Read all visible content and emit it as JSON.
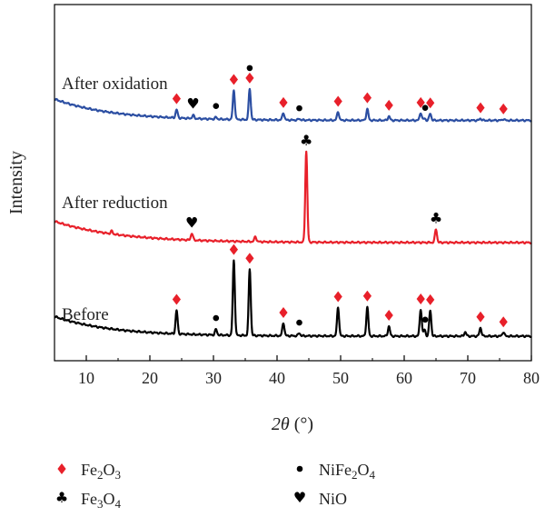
{
  "chart_data": {
    "type": "line",
    "xlabel_var": "2θ",
    "xlabel_unit": "(°)",
    "ylabel": "Intensity",
    "xlim": [
      5,
      80
    ],
    "xticks": [
      10,
      20,
      30,
      40,
      50,
      60,
      70,
      80
    ],
    "y_ticks_shown": false,
    "grid": false,
    "legend_position": "bottom",
    "legend": [
      {
        "symbol": "diamond",
        "color": "#e8202a",
        "parts": [
          [
            "Fe",
            ""
          ],
          [
            "2",
            "sub"
          ],
          [
            "O",
            ""
          ],
          [
            "3",
            "sub"
          ]
        ]
      },
      {
        "symbol": "dot",
        "color": "#000000",
        "parts": [
          [
            "NiFe",
            ""
          ],
          [
            "2",
            "sub"
          ],
          [
            "O",
            ""
          ],
          [
            "4",
            "sub"
          ]
        ]
      },
      {
        "symbol": "club",
        "color": "#000000",
        "parts": [
          [
            "Fe",
            ""
          ],
          [
            "3",
            "sub"
          ],
          [
            "O",
            ""
          ],
          [
            "4",
            "sub"
          ]
        ]
      },
      {
        "symbol": "heart",
        "color": "#000000",
        "parts": [
          [
            "NiO",
            ""
          ]
        ]
      }
    ],
    "series": [
      {
        "name": "After oxidation",
        "color": "#2b4ea2",
        "baseline": {
          "start": 2.6,
          "end": 0.25,
          "decay": 9
        },
        "peaks": [
          [
            24.2,
            0.9
          ],
          [
            26.8,
            0.35
          ],
          [
            30.4,
            0.2
          ],
          [
            33.2,
            3.2
          ],
          [
            35.7,
            3.4
          ],
          [
            41.0,
            0.8
          ],
          [
            43.5,
            0.15
          ],
          [
            49.6,
            0.95
          ],
          [
            54.2,
            1.25
          ],
          [
            57.6,
            0.45
          ],
          [
            62.6,
            0.85
          ],
          [
            63.2,
            0.2
          ],
          [
            64.1,
            0.75
          ],
          [
            72.0,
            0.2
          ],
          [
            75.6,
            0.15
          ]
        ],
        "markers": [
          {
            "symbol": "diamond",
            "x": 24.2
          },
          {
            "symbol": "heart",
            "x": 26.8
          },
          {
            "symbol": "dot",
            "x": 30.4
          },
          {
            "symbol": "diamond",
            "x": 33.2
          },
          {
            "symbol": "diamond",
            "x": 35.7
          },
          {
            "symbol": "dot",
            "x": 35.7
          },
          {
            "symbol": "diamond",
            "x": 41.0
          },
          {
            "symbol": "dot",
            "x": 43.5
          },
          {
            "symbol": "diamond",
            "x": 49.6
          },
          {
            "symbol": "diamond",
            "x": 54.2
          },
          {
            "symbol": "diamond",
            "x": 57.6
          },
          {
            "symbol": "diamond",
            "x": 62.6
          },
          {
            "symbol": "dot",
            "x": 63.3
          },
          {
            "symbol": "diamond",
            "x": 64.1
          },
          {
            "symbol": "diamond",
            "x": 72.0
          },
          {
            "symbol": "diamond",
            "x": 75.6
          }
        ]
      },
      {
        "name": "After reduction",
        "color": "#e8202a",
        "baseline": {
          "start": 2.4,
          "end": 0.1,
          "decay": 10
        },
        "peaks": [
          [
            14.0,
            0.3
          ],
          [
            26.6,
            0.75
          ],
          [
            36.6,
            0.55
          ],
          [
            44.6,
            9.8
          ],
          [
            65.0,
            1.45
          ]
        ],
        "markers": [
          {
            "symbol": "heart",
            "x": 26.6
          },
          {
            "symbol": "club",
            "x": 44.6
          },
          {
            "symbol": "club",
            "x": 65.0
          }
        ]
      },
      {
        "name": "Before",
        "color": "#000000",
        "baseline": {
          "start": 2.2,
          "end": 0.1,
          "decay": 9
        },
        "peaks": [
          [
            24.2,
            2.5
          ],
          [
            30.4,
            0.6
          ],
          [
            33.2,
            8.0
          ],
          [
            35.7,
            7.1
          ],
          [
            41.0,
            1.4
          ],
          [
            43.5,
            0.3
          ],
          [
            49.6,
            3.1
          ],
          [
            54.2,
            3.1
          ],
          [
            57.6,
            1.05
          ],
          [
            62.6,
            2.9
          ],
          [
            63.2,
            0.7
          ],
          [
            64.1,
            2.75
          ],
          [
            69.6,
            0.45
          ],
          [
            72.0,
            0.9
          ],
          [
            75.6,
            0.45
          ]
        ],
        "markers": [
          {
            "symbol": "diamond",
            "x": 24.2
          },
          {
            "symbol": "dot",
            "x": 30.4
          },
          {
            "symbol": "diamond",
            "x": 33.2
          },
          {
            "symbol": "diamond",
            "x": 35.7
          },
          {
            "symbol": "diamond",
            "x": 41.0
          },
          {
            "symbol": "dot",
            "x": 43.5
          },
          {
            "symbol": "diamond",
            "x": 49.6
          },
          {
            "symbol": "diamond",
            "x": 54.2
          },
          {
            "symbol": "diamond",
            "x": 57.6
          },
          {
            "symbol": "diamond",
            "x": 62.6
          },
          {
            "symbol": "dot",
            "x": 63.3
          },
          {
            "symbol": "diamond",
            "x": 64.1
          },
          {
            "symbol": "diamond",
            "x": 72.0
          },
          {
            "symbol": "diamond",
            "x": 75.6
          }
        ]
      }
    ]
  }
}
